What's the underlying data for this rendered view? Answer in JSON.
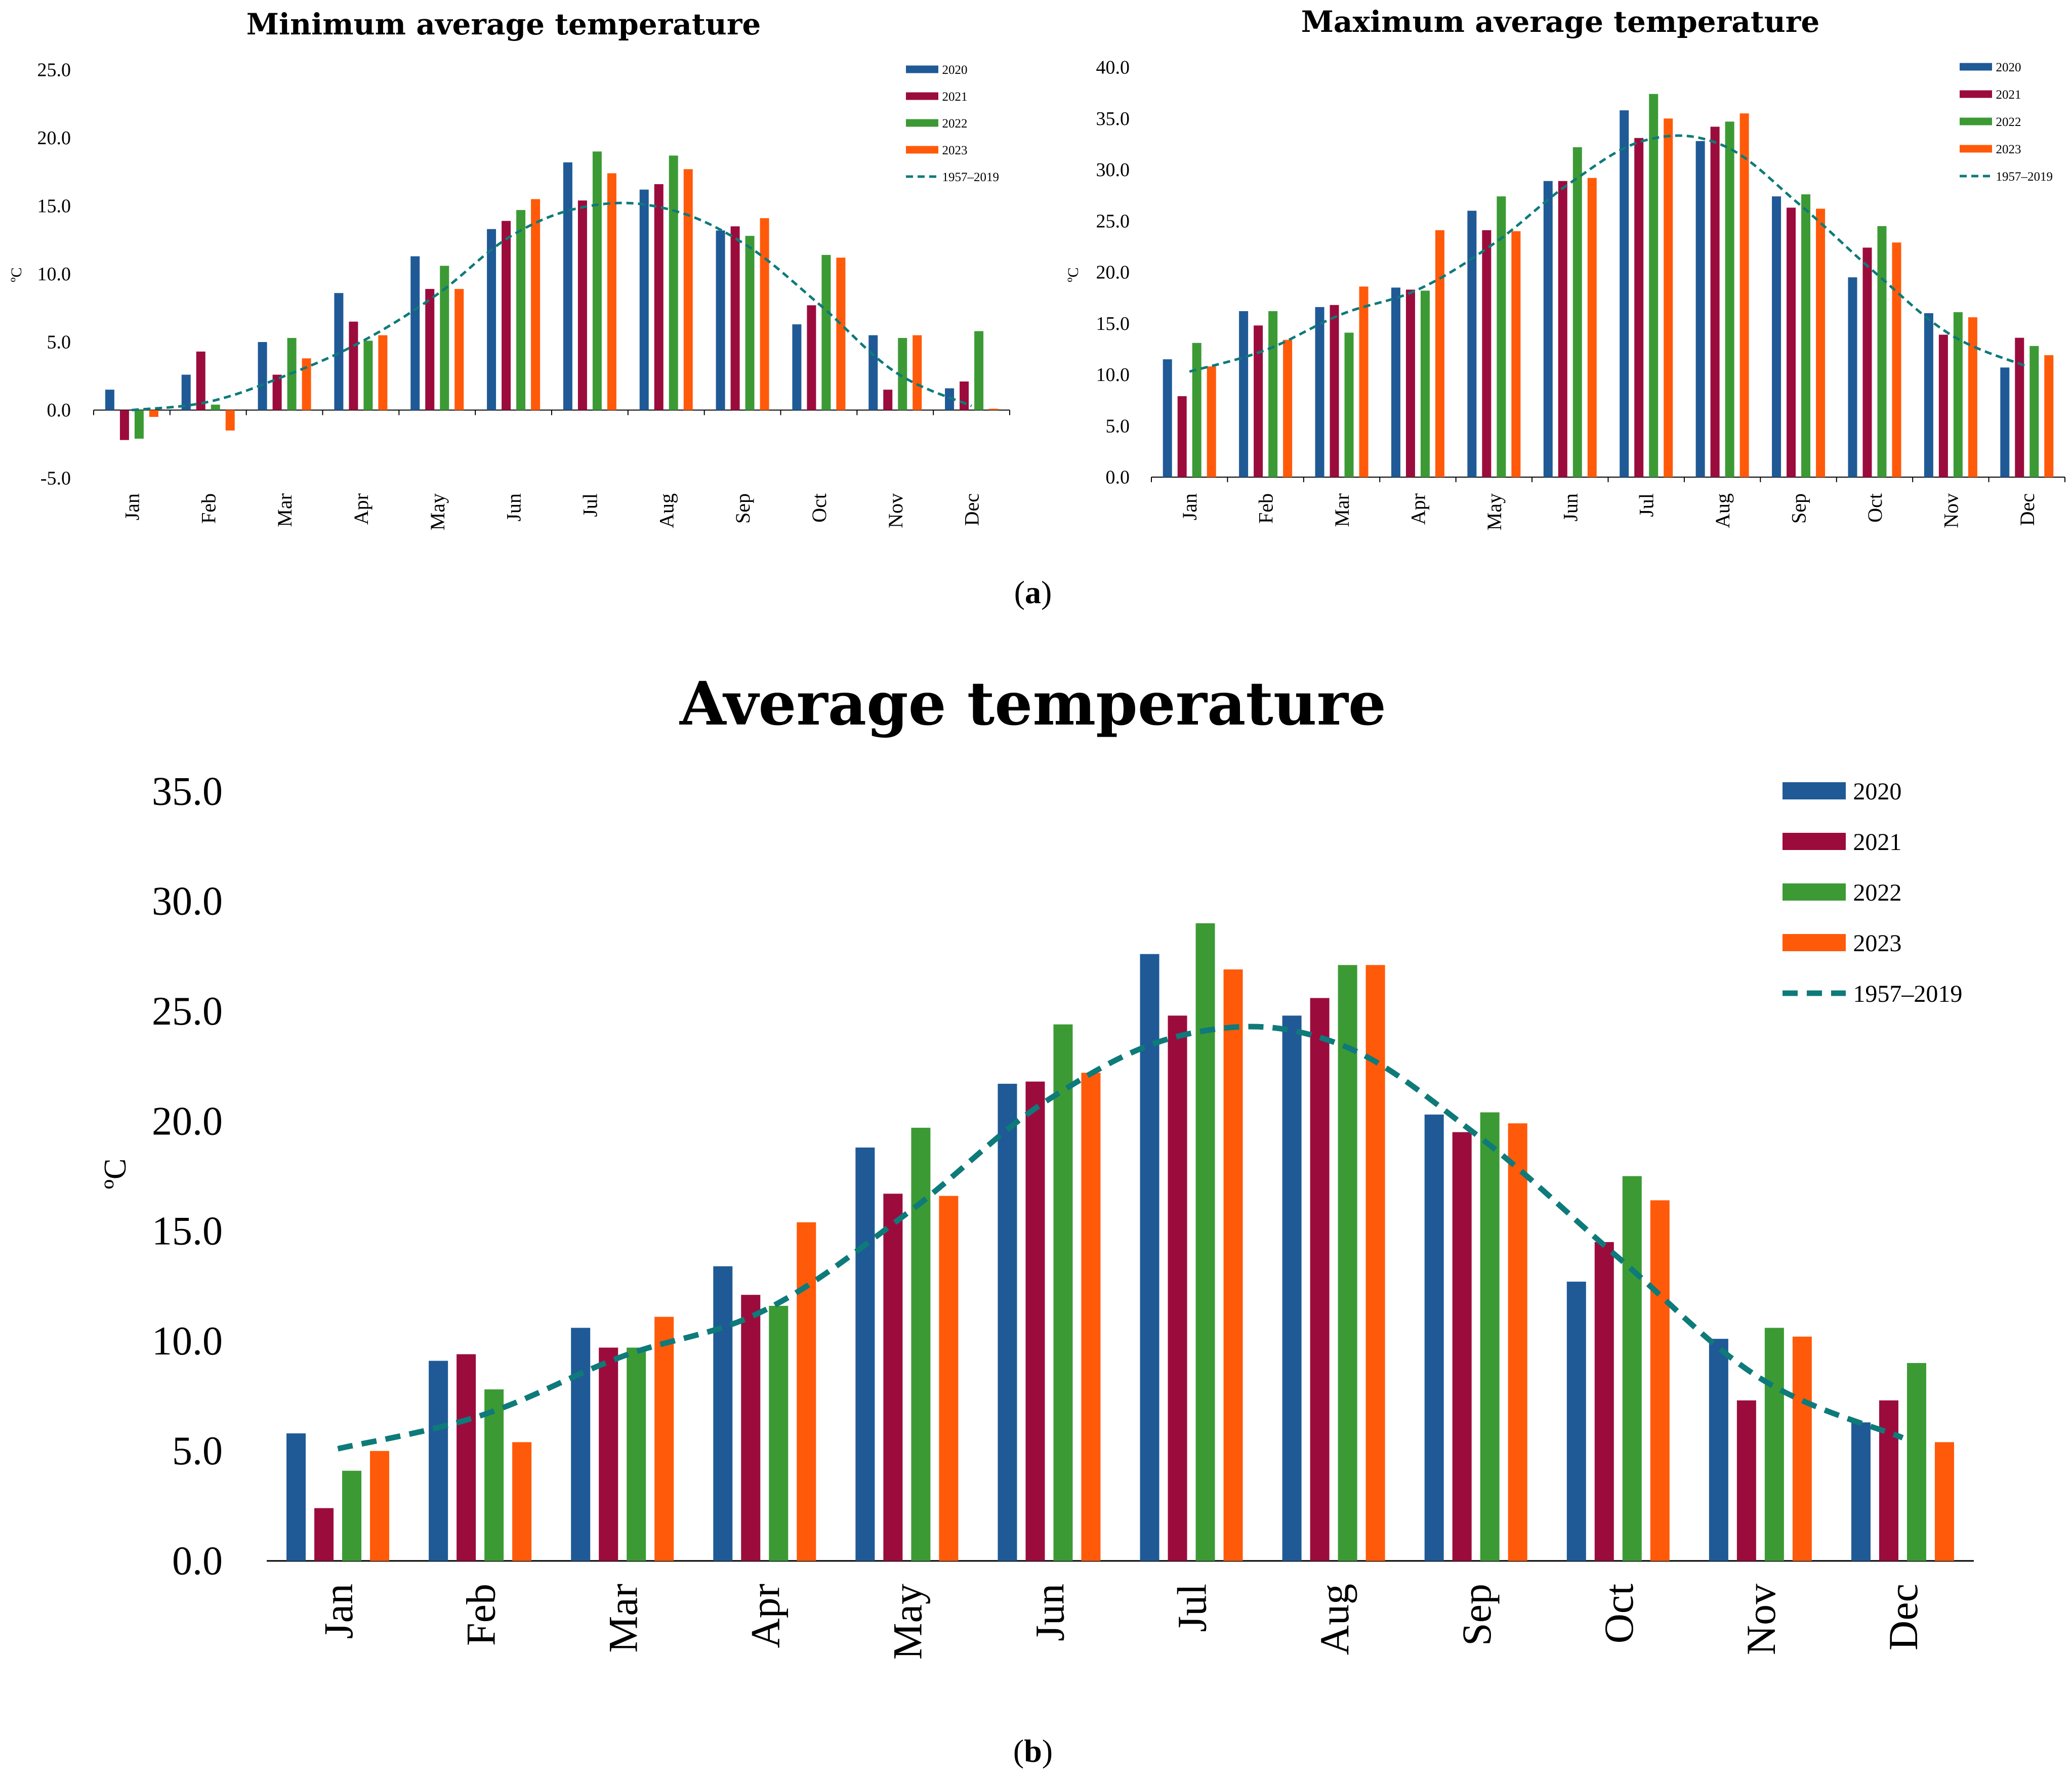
{
  "colors": {
    "2020": "#1f5a96",
    "2021": "#9b0c3c",
    "2022": "#3c9a35",
    "2023": "#ff5a0a",
    "1957–2019": "#0e7a7a"
  },
  "panel_labels": {
    "a_open": "(",
    "a_letter": "a",
    "a_close": ")",
    "b_open": "(",
    "b_letter": "b",
    "b_close": ")"
  },
  "chart_data": [
    {
      "id": "min",
      "type": "bar",
      "title": "Minimum average temperature",
      "ylabel": "ºC",
      "ylim": [
        -5,
        25
      ],
      "yticks": [
        -5,
        0,
        5,
        10,
        15,
        20,
        25
      ],
      "tick_labels": [
        "-5.0",
        "0.0",
        "5.0",
        "10.0",
        "15.0",
        "20.0",
        "25.0"
      ],
      "categories": [
        "Jan",
        "Feb",
        "Mar",
        "Apr",
        "May",
        "Jun",
        "Jul",
        "Aug",
        "Sep",
        "Oct",
        "Nov",
        "Dec"
      ],
      "series": [
        {
          "name": "2020",
          "values": [
            1.5,
            2.6,
            5.0,
            8.6,
            11.3,
            13.3,
            18.2,
            16.2,
            13.2,
            6.3,
            5.5,
            1.6
          ]
        },
        {
          "name": "2021",
          "values": [
            -2.2,
            4.3,
            2.6,
            6.5,
            8.9,
            13.9,
            15.4,
            16.6,
            13.5,
            7.7,
            1.5,
            2.1
          ]
        },
        {
          "name": "2022",
          "values": [
            -2.1,
            0.4,
            5.3,
            5.1,
            10.6,
            14.7,
            19.0,
            18.7,
            12.8,
            11.4,
            5.3,
            5.8
          ]
        },
        {
          "name": "2023",
          "values": [
            -0.5,
            -1.5,
            3.8,
            5.5,
            8.9,
            15.5,
            17.4,
            17.7,
            14.1,
            11.2,
            5.5,
            0.1
          ]
        }
      ],
      "line": {
        "name": "1957–2019",
        "values": [
          0.0,
          0.6,
          2.5,
          5.0,
          8.5,
          12.9,
          15.0,
          14.8,
          12.3,
          7.8,
          2.8,
          0.3
        ]
      },
      "legend_position": "top-right"
    },
    {
      "id": "max",
      "type": "bar",
      "title": "Maximum average temperature",
      "ylabel": "ºC",
      "ylim": [
        0,
        40
      ],
      "yticks": [
        0,
        5,
        10,
        15,
        20,
        25,
        30,
        35,
        40
      ],
      "tick_labels": [
        "0.0",
        "5.0",
        "10.0",
        "15.0",
        "20.0",
        "25.0",
        "30.0",
        "35.0",
        "40.0"
      ],
      "categories": [
        "Jan",
        "Feb",
        "Mar",
        "Apr",
        "May",
        "Jun",
        "Jul",
        "Aug",
        "Sep",
        "Oct",
        "Nov",
        "Dec"
      ],
      "series": [
        {
          "name": "2020",
          "values": [
            11.5,
            16.2,
            16.6,
            18.5,
            26.0,
            28.9,
            35.8,
            32.8,
            27.4,
            19.5,
            16.0,
            10.7
          ]
        },
        {
          "name": "2021",
          "values": [
            7.9,
            14.8,
            16.8,
            18.3,
            24.1,
            28.9,
            33.1,
            34.2,
            26.3,
            22.4,
            13.9,
            13.6
          ]
        },
        {
          "name": "2022",
          "values": [
            13.1,
            16.2,
            14.1,
            18.2,
            27.4,
            32.2,
            37.4,
            34.7,
            27.6,
            24.5,
            16.1,
            12.8
          ]
        },
        {
          "name": "2023",
          "values": [
            10.8,
            13.4,
            18.6,
            24.1,
            24.0,
            29.2,
            35.0,
            35.5,
            26.2,
            22.9,
            15.6,
            11.9
          ]
        }
      ],
      "line": {
        "name": "1957–2019",
        "values": [
          10.3,
          12.4,
          15.9,
          18.3,
          22.8,
          28.7,
          32.9,
          32.4,
          26.7,
          20.0,
          13.9,
          10.8
        ]
      },
      "legend_position": "top-right"
    },
    {
      "id": "avg",
      "type": "bar",
      "title": "Average temperature",
      "ylabel": "ºC",
      "ylim": [
        0,
        35
      ],
      "yticks": [
        0,
        5,
        10,
        15,
        20,
        25,
        30,
        35
      ],
      "tick_labels": [
        "0.0",
        "5.0",
        "10.0",
        "15.0",
        "20.0",
        "25.0",
        "30.0",
        "35.0"
      ],
      "categories": [
        "Jan",
        "Feb",
        "Mar",
        "Apr",
        "May",
        "Jun",
        "Jul",
        "Aug",
        "Sep",
        "Oct",
        "Nov",
        "Dec"
      ],
      "series": [
        {
          "name": "2020",
          "values": [
            5.8,
            9.1,
            10.6,
            13.4,
            18.8,
            21.7,
            27.6,
            24.8,
            20.3,
            12.7,
            10.1,
            6.3
          ]
        },
        {
          "name": "2021",
          "values": [
            2.4,
            9.4,
            9.7,
            12.1,
            16.7,
            21.8,
            24.8,
            25.6,
            19.5,
            14.5,
            7.3,
            7.3
          ]
        },
        {
          "name": "2022",
          "values": [
            4.1,
            7.8,
            9.7,
            11.6,
            19.7,
            24.4,
            29.0,
            27.1,
            20.4,
            17.5,
            10.6,
            9.0
          ]
        },
        {
          "name": "2023",
          "values": [
            5.0,
            5.4,
            11.1,
            15.4,
            16.6,
            22.2,
            26.9,
            27.1,
            19.9,
            16.4,
            10.2,
            5.4
          ]
        }
      ],
      "line": {
        "name": "1957–2019",
        "values": [
          5.1,
          6.6,
          9.3,
          11.4,
          15.8,
          21.0,
          24.0,
          23.6,
          19.4,
          13.8,
          8.3,
          5.6
        ]
      },
      "legend_position": "top-right"
    }
  ]
}
